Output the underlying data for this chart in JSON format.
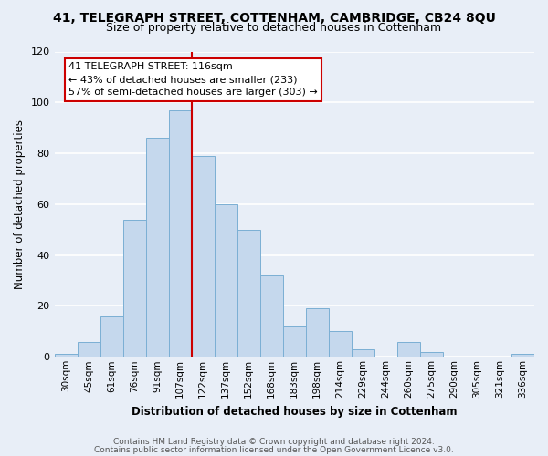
{
  "title_line1": "41, TELEGRAPH STREET, COTTENHAM, CAMBRIDGE, CB24 8QU",
  "title_line2": "Size of property relative to detached houses in Cottenham",
  "xlabel": "Distribution of detached houses by size in Cottenham",
  "ylabel": "Number of detached properties",
  "bar_labels": [
    "30sqm",
    "45sqm",
    "61sqm",
    "76sqm",
    "91sqm",
    "107sqm",
    "122sqm",
    "137sqm",
    "152sqm",
    "168sqm",
    "183sqm",
    "198sqm",
    "214sqm",
    "229sqm",
    "244sqm",
    "260sqm",
    "275sqm",
    "290sqm",
    "305sqm",
    "321sqm",
    "336sqm"
  ],
  "bar_heights": [
    1,
    6,
    16,
    54,
    86,
    97,
    79,
    60,
    50,
    32,
    12,
    19,
    10,
    3,
    0,
    6,
    2,
    0,
    0,
    0,
    1
  ],
  "bar_color": "#c5d8ed",
  "bar_edge_color": "#7bafd4",
  "vline_index": 6,
  "vline_color": "#cc0000",
  "ylim": [
    0,
    120
  ],
  "yticks": [
    0,
    20,
    40,
    60,
    80,
    100,
    120
  ],
  "annotation_title": "41 TELEGRAPH STREET: 116sqm",
  "annotation_line1": "← 43% of detached houses are smaller (233)",
  "annotation_line2": "57% of semi-detached houses are larger (303) →",
  "annotation_box_facecolor": "#ffffff",
  "annotation_box_edgecolor": "#cc0000",
  "footer_line1": "Contains HM Land Registry data © Crown copyright and database right 2024.",
  "footer_line2": "Contains public sector information licensed under the Open Government Licence v3.0.",
  "background_color": "#e8eef7",
  "grid_color": "#ffffff",
  "title1_fontsize": 10,
  "title2_fontsize": 9,
  "axis_label_fontsize": 8.5,
  "tick_fontsize": 7.5,
  "ytick_fontsize": 8,
  "annotation_fontsize": 8,
  "footer_fontsize": 6.5
}
